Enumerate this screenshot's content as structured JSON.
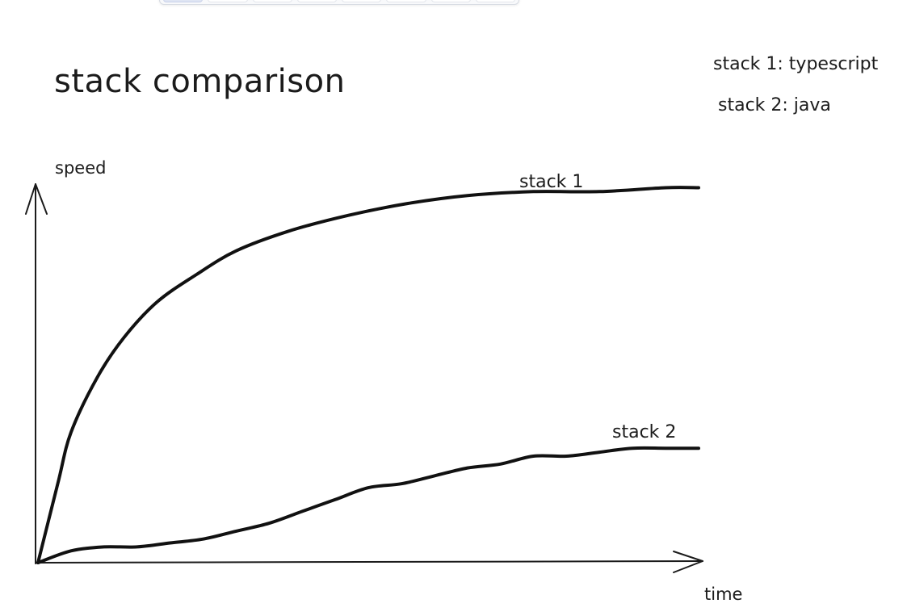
{
  "chart_data": {
    "type": "line",
    "title": "stack comparison",
    "xlabel": "time",
    "ylabel": "speed",
    "legend_entries": [
      "stack 1: typescript",
      "stack 2: java"
    ],
    "xlim": [
      0,
      100
    ],
    "ylim": [
      0,
      100
    ],
    "grid": false,
    "legend_position": "top-right",
    "series": [
      {
        "name": "stack 1",
        "x": [
          0,
          3,
          5,
          9,
          13,
          18,
          24,
          30,
          38,
          47,
          56,
          65,
          75,
          85,
          95,
          100
        ],
        "y": [
          0,
          20,
          33,
          47,
          57,
          66,
          73,
          79,
          84,
          88,
          91,
          93,
          94,
          94,
          95,
          95
        ]
      },
      {
        "name": "stack 2",
        "x": [
          0,
          5,
          10,
          15,
          20,
          25,
          30,
          35,
          40,
          45,
          50,
          55,
          60,
          65,
          70,
          75,
          80,
          85,
          90,
          95,
          100
        ],
        "y": [
          0,
          3,
          4,
          4,
          5,
          6,
          8,
          10,
          13,
          16,
          19,
          20,
          22,
          24,
          25,
          27,
          27,
          28,
          29,
          29,
          29
        ]
      }
    ],
    "colors": {
      "line": "#111111",
      "axis": "#1b1b1b"
    }
  }
}
